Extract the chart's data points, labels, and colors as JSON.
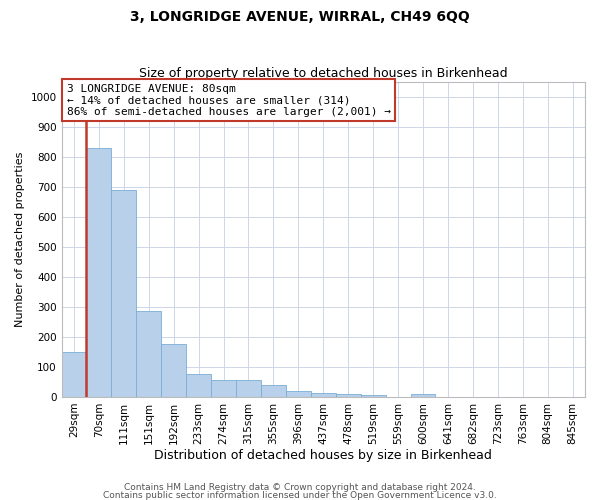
{
  "title": "3, LONGRIDGE AVENUE, WIRRAL, CH49 6QQ",
  "subtitle": "Size of property relative to detached houses in Birkenhead",
  "xlabel": "Distribution of detached houses by size in Birkenhead",
  "ylabel": "Number of detached properties",
  "categories": [
    "29sqm",
    "70sqm",
    "111sqm",
    "151sqm",
    "192sqm",
    "233sqm",
    "274sqm",
    "315sqm",
    "355sqm",
    "396sqm",
    "437sqm",
    "478sqm",
    "519sqm",
    "559sqm",
    "600sqm",
    "641sqm",
    "682sqm",
    "723sqm",
    "763sqm",
    "804sqm",
    "845sqm"
  ],
  "values": [
    150,
    830,
    690,
    285,
    175,
    78,
    55,
    55,
    40,
    20,
    12,
    10,
    8,
    0,
    10,
    0,
    0,
    0,
    0,
    0,
    0
  ],
  "bar_color": "#b8d0ea",
  "bar_edge_color": "#7aadd4",
  "vline_color": "#c0392b",
  "annotation_text": "3 LONGRIDGE AVENUE: 80sqm\n← 14% of detached houses are smaller (314)\n86% of semi-detached houses are larger (2,001) →",
  "annotation_box_color": "#ffffff",
  "annotation_box_edge": "#c0392b",
  "ylim": [
    0,
    1050
  ],
  "yticks": [
    0,
    100,
    200,
    300,
    400,
    500,
    600,
    700,
    800,
    900,
    1000
  ],
  "footer1": "Contains HM Land Registry data © Crown copyright and database right 2024.",
  "footer2": "Contains public sector information licensed under the Open Government Licence v3.0.",
  "bg_color": "#ffffff",
  "grid_color": "#ccd6e8",
  "title_fontsize": 10,
  "subtitle_fontsize": 9,
  "ylabel_fontsize": 8,
  "xlabel_fontsize": 9,
  "tick_fontsize": 7.5,
  "annotation_fontsize": 8,
  "footer_fontsize": 6.5
}
